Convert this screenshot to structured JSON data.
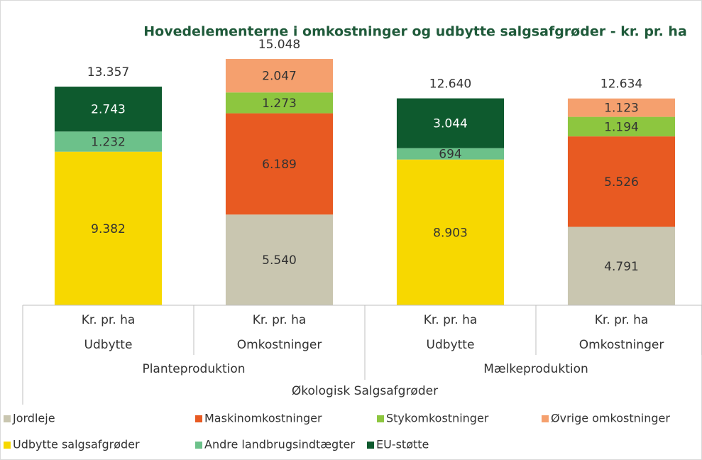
{
  "chart_data": {
    "type": "stacked_bar",
    "title": "Hovedelementerne i omkostninger og udbytte salgsafgrøder -  kr. pr. ha",
    "categories": [
      [
        "Kr. pr. ha",
        "Kr. pr. ha",
        "Kr. pr. ha",
        "Kr. pr. ha"
      ],
      [
        "Udbytte",
        "Omkostninger",
        "Udbytte",
        "Omkostninger"
      ],
      [
        "Planteproduktion",
        "Mælkeproduktion"
      ],
      [
        "Økologisk Salgsafgrøder"
      ]
    ],
    "series": [
      {
        "name": "Jordleje",
        "color": "#c9c6b0",
        "values": [
          null,
          5540,
          null,
          4791
        ],
        "value_labels": [
          null,
          "5.540",
          null,
          "4.791"
        ]
      },
      {
        "name": "Maskinomkostninger",
        "color": "#e85a22",
        "values": [
          null,
          6189,
          null,
          5526
        ],
        "value_labels": [
          null,
          "6.189",
          null,
          "5.526"
        ]
      },
      {
        "name": "Stykomkostninger",
        "color": "#8dc63f",
        "values": [
          null,
          1273,
          null,
          1194
        ],
        "value_labels": [
          null,
          "1.273",
          null,
          "1.194"
        ]
      },
      {
        "name": "Øvrige omkostninger",
        "color": "#f5a06e",
        "values": [
          null,
          2047,
          null,
          1123
        ],
        "value_labels": [
          null,
          "2.047",
          null,
          "1.123"
        ]
      },
      {
        "name": "Udbytte salgsafgrøder",
        "color": "#f7d800",
        "values": [
          9382,
          null,
          8903,
          null
        ],
        "value_labels": [
          "9.382",
          null,
          "8.903",
          null
        ]
      },
      {
        "name": "Andre landbrugsindtægter",
        "color": "#6cc18a",
        "values": [
          1232,
          null,
          694,
          null
        ],
        "value_labels": [
          "1.232",
          null,
          "694",
          null
        ]
      },
      {
        "name": "EU-støtte",
        "color": "#0e5a2e",
        "values": [
          2743,
          null,
          3044,
          null
        ],
        "value_labels": [
          "2.743",
          null,
          "3.044",
          null
        ]
      }
    ],
    "totals": {
      "values": [
        13357,
        15048,
        12640,
        12634
      ],
      "value_labels": [
        "13.357",
        "15.048",
        "12.640",
        "12.634"
      ]
    },
    "ylim": [
      0,
      18000
    ]
  }
}
